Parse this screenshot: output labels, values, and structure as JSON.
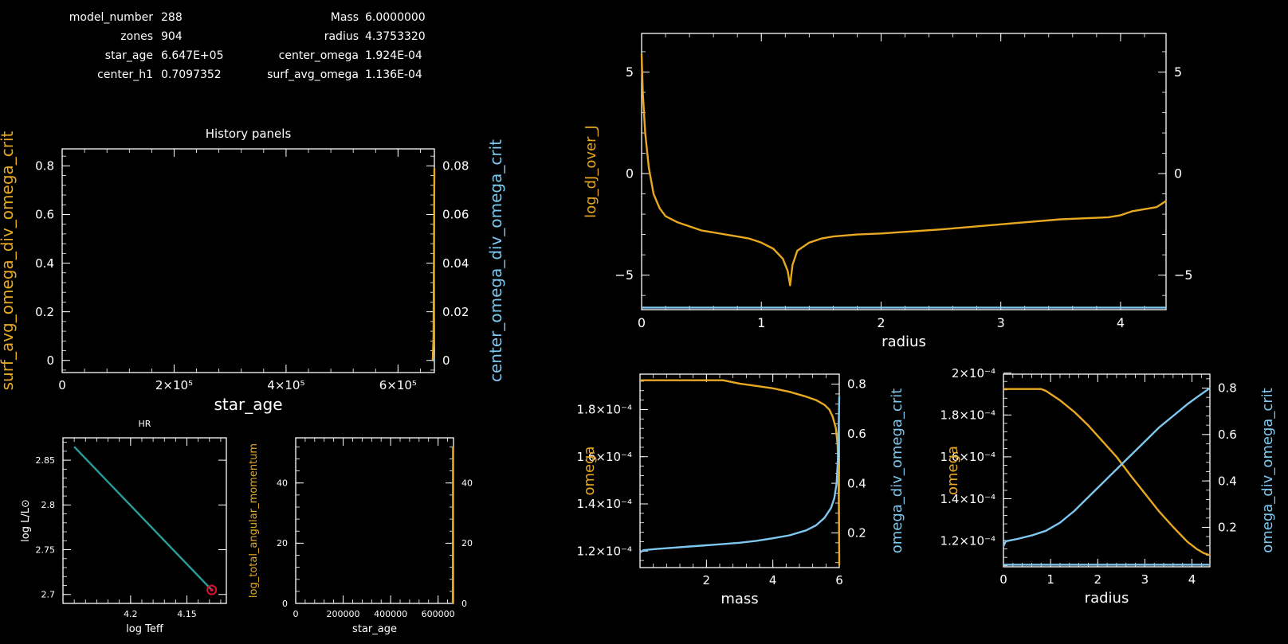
{
  "header": {
    "rows": [
      {
        "label1": "model_number",
        "value1": "288",
        "label2": "Mass",
        "value2": "6.0000000"
      },
      {
        "label1": "zones",
        "value1": "904",
        "label2": "radius",
        "value2": "4.3753320"
      },
      {
        "label1": "star_age",
        "value1": "6.647E+05",
        "label2": "center_omega",
        "value2": "1.924E-04"
      },
      {
        "label1": "center_h1",
        "value1": "0.7097352",
        "label2": "surf_avg_omega",
        "value2": "1.136E-04"
      }
    ]
  },
  "colors": {
    "orange": "#e8a820",
    "blue": "#7ec8f0",
    "teal": "#2a9c9c",
    "red": "#e01030",
    "white": "#ffffff",
    "bg": "#000000"
  },
  "chart_data": [
    {
      "id": "history",
      "type": "line",
      "title": "History panels",
      "xlabel": "star_age",
      "ylabel_left": "surf_avg_omega_div_omega_crit",
      "ylabel_right": "center_omega_div_omega_crit",
      "xlim": [
        0,
        665000
      ],
      "ylim_left": [
        -0.05,
        0.87
      ],
      "ylim_right": [
        -0.005,
        0.087
      ],
      "xticks": [
        {
          "v": 0,
          "t": "0"
        },
        {
          "v": 200000,
          "t": "2×10⁵"
        },
        {
          "v": 400000,
          "t": "4×10⁵"
        },
        {
          "v": 600000,
          "t": "6×10⁵"
        }
      ],
      "yticks_left": [
        {
          "v": 0,
          "t": "0"
        },
        {
          "v": 0.2,
          "t": "0.2"
        },
        {
          "v": 0.4,
          "t": "0.4"
        },
        {
          "v": 0.6,
          "t": "0.6"
        },
        {
          "v": 0.8,
          "t": "0.8"
        }
      ],
      "yticks_right": [
        {
          "v": 0,
          "t": "0"
        },
        {
          "v": 0.02,
          "t": "0.02"
        },
        {
          "v": 0.04,
          "t": "0.04"
        },
        {
          "v": 0.06,
          "t": "0.06"
        },
        {
          "v": 0.08,
          "t": "0.08"
        }
      ],
      "series": [
        {
          "axis": "left",
          "color": "orange",
          "x": [
            662000,
            663500,
            665000
          ],
          "y": [
            0,
            0.09,
            0.79
          ]
        },
        {
          "axis": "right",
          "color": "blue",
          "x": [
            662000,
            665000
          ],
          "y": [
            0,
            0
          ]
        }
      ]
    },
    {
      "id": "hr",
      "type": "line",
      "title": "HR",
      "xlabel": "log Teff",
      "ylabel": "log L/L⊙",
      "xlim": [
        4.26,
        4.115
      ],
      "ylim": [
        2.69,
        2.875
      ],
      "xticks": [
        {
          "v": 4.2,
          "t": "4.2"
        },
        {
          "v": 4.15,
          "t": "4.15"
        }
      ],
      "yticks": [
        {
          "v": 2.7,
          "t": "2.7"
        },
        {
          "v": 2.75,
          "t": "2.75"
        },
        {
          "v": 2.8,
          "t": "2.8"
        },
        {
          "v": 2.85,
          "t": "2.85"
        }
      ],
      "series": [
        {
          "color": "teal",
          "x": [
            4.25,
            4.128
          ],
          "y": [
            2.865,
            2.705
          ]
        }
      ],
      "marker": {
        "x": 4.128,
        "y": 2.705,
        "color": "red"
      }
    },
    {
      "id": "angmom",
      "type": "line",
      "xlabel": "star_age",
      "ylabel": "log_total_angular_momentum",
      "xlim": [
        0,
        665000
      ],
      "ylim": [
        0,
        55
      ],
      "xticks": [
        {
          "v": 0,
          "t": "0"
        },
        {
          "v": 200000,
          "t": "200000"
        },
        {
          "v": 400000,
          "t": "400000"
        },
        {
          "v": 600000,
          "t": "600000"
        }
      ],
      "yticks": [
        {
          "v": 0,
          "t": "0"
        },
        {
          "v": 20,
          "t": "20"
        },
        {
          "v": 40,
          "t": "40"
        }
      ],
      "yticks_right": [
        {
          "v": 0,
          "t": "0"
        },
        {
          "v": 20,
          "t": "20"
        },
        {
          "v": 40,
          "t": "40"
        }
      ],
      "series": [
        {
          "color": "orange",
          "x": [
            662000,
            662500,
            663000
          ],
          "y": [
            0,
            30,
            52
          ]
        }
      ]
    },
    {
      "id": "djj",
      "type": "line",
      "xlabel": "radius",
      "ylabel": "log_dJ_over_J",
      "xlim": [
        0,
        4.38
      ],
      "ylim": [
        -6.7,
        6.9
      ],
      "xticks": [
        {
          "v": 0,
          "t": "0"
        },
        {
          "v": 1,
          "t": "1"
        },
        {
          "v": 2,
          "t": "2"
        },
        {
          "v": 3,
          "t": "3"
        },
        {
          "v": 4,
          "t": "4"
        }
      ],
      "yticks": [
        {
          "v": -5,
          "t": "−5"
        },
        {
          "v": 0,
          "t": "0"
        },
        {
          "v": 5,
          "t": "5"
        }
      ],
      "yticks_right": [
        {
          "v": -5,
          "t": "−5"
        },
        {
          "v": 0,
          "t": "0"
        },
        {
          "v": 5,
          "t": "5"
        }
      ],
      "series": [
        {
          "color": "orange",
          "x": [
            0.0,
            0.01,
            0.03,
            0.06,
            0.1,
            0.15,
            0.2,
            0.3,
            0.4,
            0.5,
            0.6,
            0.7,
            0.8,
            0.9,
            1.0,
            1.1,
            1.18,
            1.22,
            1.24,
            1.26,
            1.3,
            1.4,
            1.5,
            1.6,
            1.8,
            2.0,
            2.5,
            3.0,
            3.5,
            3.9,
            4.0,
            4.1,
            4.3,
            4.38
          ],
          "y": [
            5.9,
            4.0,
            2.0,
            0.3,
            -1.0,
            -1.7,
            -2.1,
            -2.4,
            -2.6,
            -2.8,
            -2.9,
            -3.0,
            -3.1,
            -3.2,
            -3.4,
            -3.7,
            -4.2,
            -4.8,
            -5.5,
            -4.5,
            -3.8,
            -3.4,
            -3.2,
            -3.1,
            -3.0,
            -2.95,
            -2.75,
            -2.5,
            -2.25,
            -2.15,
            -2.05,
            -1.85,
            -1.65,
            -1.35
          ]
        },
        {
          "color": "blue",
          "x": [
            0,
            4.38
          ],
          "y": [
            -6.6,
            -6.6
          ]
        }
      ]
    },
    {
      "id": "omega_mass",
      "type": "line",
      "xlabel": "mass",
      "ylabel_left": "omega",
      "ylabel_right": "omega_div_omega_crit",
      "xlim": [
        0,
        6
      ],
      "ylim_left": [
        0.000113,
        0.000195
      ],
      "ylim_right": [
        0.06,
        0.84
      ],
      "xticks": [
        {
          "v": 2,
          "t": "2"
        },
        {
          "v": 4,
          "t": "4"
        },
        {
          "v": 6,
          "t": "6"
        }
      ],
      "yticks_left": [
        {
          "v": 0.00012,
          "t": "1.2×10⁻⁴"
        },
        {
          "v": 0.00014,
          "t": "1.4×10⁻⁴"
        },
        {
          "v": 0.00016,
          "t": "1.6×10⁻⁴"
        },
        {
          "v": 0.00018,
          "t": "1.8×10⁻⁴"
        }
      ],
      "yticks_right": [
        {
          "v": 0.2,
          "t": "0.2"
        },
        {
          "v": 0.4,
          "t": "0.4"
        },
        {
          "v": 0.6,
          "t": "0.6"
        },
        {
          "v": 0.8,
          "t": "0.8"
        }
      ],
      "series": [
        {
          "axis": "left",
          "color": "orange",
          "x": [
            0,
            0.5,
            1.0,
            1.5,
            2.0,
            2.5,
            3.0,
            3.5,
            4.0,
            4.5,
            5.0,
            5.3,
            5.55,
            5.7,
            5.8,
            5.9,
            5.95,
            5.97,
            5.99,
            6.0
          ],
          "y": [
            0.0001924,
            0.0001924,
            0.0001924,
            0.0001924,
            0.0001924,
            0.0001924,
            0.000191,
            0.00019,
            0.000189,
            0.0001875,
            0.0001855,
            0.000184,
            0.000182,
            0.00018,
            0.000177,
            0.000172,
            0.000165,
            0.000155,
            0.000135,
            0.000114
          ]
        },
        {
          "axis": "right",
          "color": "blue",
          "x": [
            0,
            0.1,
            0.5,
            1.0,
            1.5,
            2.0,
            2.5,
            3.0,
            3.5,
            4.0,
            4.5,
            5.0,
            5.3,
            5.55,
            5.75,
            5.85,
            5.92,
            5.96,
            5.98,
            6.0
          ],
          "y": [
            0.12,
            0.13,
            0.135,
            0.14,
            0.145,
            0.15,
            0.155,
            0.16,
            0.168,
            0.178,
            0.19,
            0.21,
            0.23,
            0.26,
            0.3,
            0.34,
            0.4,
            0.5,
            0.62,
            0.75
          ]
        }
      ]
    },
    {
      "id": "omega_radius",
      "type": "line",
      "xlabel": "radius",
      "ylabel_left": "omega",
      "ylabel_right": "omega_div_omega_crit",
      "xlim": [
        0,
        4.38
      ],
      "ylim_left": [
        0.0001075,
        0.0001995
      ],
      "ylim_right": [
        0.03,
        0.86
      ],
      "xticks": [
        {
          "v": 0,
          "t": "0"
        },
        {
          "v": 1,
          "t": "1"
        },
        {
          "v": 2,
          "t": "2"
        },
        {
          "v": 3,
          "t": "3"
        },
        {
          "v": 4,
          "t": "4"
        }
      ],
      "yticks_left": [
        {
          "v": 0.00012,
          "t": "1.2×10⁻⁴"
        },
        {
          "v": 0.00014,
          "t": "1.4×10⁻⁴"
        },
        {
          "v": 0.00016,
          "t": "1.6×10⁻⁴"
        },
        {
          "v": 0.00018,
          "t": "1.8×10⁻⁴"
        },
        {
          "v": 0.0002,
          "t": "2×10⁻⁴"
        }
      ],
      "yticks_right": [
        {
          "v": 0.2,
          "t": "0.2"
        },
        {
          "v": 0.4,
          "t": "0.4"
        },
        {
          "v": 0.6,
          "t": "0.6"
        },
        {
          "v": 0.8,
          "t": "0.8"
        }
      ],
      "series": [
        {
          "axis": "left",
          "color": "orange",
          "x": [
            0,
            0.4,
            0.8,
            0.9,
            1.2,
            1.5,
            1.8,
            2.1,
            2.4,
            2.7,
            3.0,
            3.3,
            3.6,
            3.9,
            4.1,
            4.25,
            4.38
          ],
          "y": [
            0.0001924,
            0.0001924,
            0.0001924,
            0.0001915,
            0.000187,
            0.0001815,
            0.000175,
            0.0001675,
            0.00016,
            0.000151,
            0.0001425,
            0.000134,
            0.0001265,
            0.0001195,
            0.000116,
            0.000114,
            0.000113
          ]
        },
        {
          "axis": "right",
          "color": "blue",
          "x": [
            0,
            0.05,
            0.3,
            0.6,
            0.9,
            1.2,
            1.5,
            1.8,
            2.1,
            2.4,
            2.7,
            3.0,
            3.3,
            3.6,
            3.9,
            4.1,
            4.38
          ],
          "y": [
            0.12,
            0.14,
            0.15,
            0.165,
            0.185,
            0.22,
            0.27,
            0.33,
            0.39,
            0.45,
            0.51,
            0.57,
            0.63,
            0.68,
            0.73,
            0.76,
            0.8
          ]
        },
        {
          "axis": "left",
          "color": "blue",
          "x": [
            0,
            4.38
          ],
          "y": [
            0.0001085,
            0.0001085
          ]
        }
      ]
    }
  ]
}
